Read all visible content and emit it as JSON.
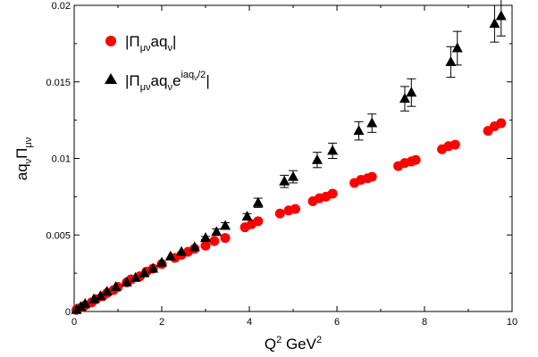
{
  "chart_data": {
    "type": "scatter",
    "title": "",
    "xlim": [
      0,
      10
    ],
    "ylim": [
      0,
      0.02
    ],
    "x_ticks": [
      0,
      2,
      4,
      6,
      8,
      10
    ],
    "y_ticks": [
      0,
      0.005,
      0.01,
      0.015,
      0.02
    ],
    "x_tick_labels": [
      "0",
      "2",
      "4",
      "6",
      "8",
      "10"
    ],
    "y_tick_labels": [
      "0",
      "0.005",
      "0.01",
      "0.015",
      "0.02"
    ],
    "xlabel": {
      "base": "Q",
      "sup1": "2",
      "mid": " GeV",
      "sup2": "2"
    },
    "ylabel": {
      "a": "aq",
      "a_sub": "ν",
      "b": "Π",
      "b_sub": "μν"
    },
    "legend_position": "top-left",
    "legend": [
      {
        "prefix": "|Π",
        "sub1": "μν",
        "mid": "aq",
        "sub2": "ν",
        "sup": "",
        "suffix": "|"
      },
      {
        "prefix": "|Π",
        "sub1": "μν",
        "mid": "aq",
        "sub2": "ν",
        "mid2": "e",
        "sup": "iaq",
        "sup_sub": "ν",
        "sup_tail": "/2",
        "suffix": "|"
      }
    ],
    "series": [
      {
        "marker": "circle",
        "color": "#ff0000",
        "x": [
          0.05,
          0.1,
          0.2,
          0.25,
          0.4,
          0.5,
          0.65,
          0.75,
          0.9,
          1.0,
          1.2,
          1.3,
          1.5,
          1.65,
          1.8,
          2.0,
          2.3,
          2.45,
          2.6,
          2.75,
          3.0,
          3.2,
          3.45,
          3.9,
          4.05,
          4.2,
          4.7,
          4.9,
          5.05,
          5.45,
          5.6,
          5.75,
          5.9,
          6.4,
          6.55,
          6.7,
          6.8,
          7.4,
          7.55,
          7.7,
          7.8,
          8.4,
          8.55,
          8.7,
          9.45,
          9.6,
          9.75
        ],
        "y": [
          0.0001,
          0.0002,
          0.0003,
          0.0004,
          0.0006,
          0.0008,
          0.001,
          0.0012,
          0.0014,
          0.0016,
          0.0019,
          0.0021,
          0.0023,
          0.0026,
          0.0028,
          0.0031,
          0.0035,
          0.0037,
          0.0039,
          0.0041,
          0.0043,
          0.0046,
          0.0048,
          0.0055,
          0.0057,
          0.0059,
          0.0064,
          0.0066,
          0.0067,
          0.0072,
          0.0074,
          0.0075,
          0.0077,
          0.0084,
          0.0086,
          0.0087,
          0.0088,
          0.0095,
          0.0097,
          0.0098,
          0.0099,
          0.0106,
          0.0108,
          0.0109,
          0.0118,
          0.0121,
          0.0123
        ]
      },
      {
        "marker": "triangle",
        "color": "#000000",
        "x": [
          0.05,
          0.15,
          0.25,
          0.45,
          0.6,
          0.75,
          0.95,
          1.2,
          1.4,
          1.6,
          1.8,
          2.0,
          2.2,
          2.45,
          2.75,
          3.0,
          3.25,
          3.45,
          3.95,
          4.2,
          4.8,
          5.0,
          5.55,
          5.9,
          6.5,
          6.8,
          7.55,
          7.7,
          8.6,
          8.75,
          9.6,
          9.75
        ],
        "y": [
          0.0001,
          0.0003,
          0.0005,
          0.0008,
          0.001,
          0.0013,
          0.0016,
          0.0019,
          0.0022,
          0.0025,
          0.0028,
          0.0032,
          0.0036,
          0.0039,
          0.0042,
          0.0048,
          0.0052,
          0.0056,
          0.0062,
          0.0071,
          0.0085,
          0.0088,
          0.0099,
          0.0105,
          0.0118,
          0.0123,
          0.0139,
          0.0143,
          0.0163,
          0.0172,
          0.0188,
          0.0193
        ],
        "err": [
          0,
          0,
          0,
          0,
          0,
          0,
          0,
          0,
          0,
          0,
          0,
          0,
          0,
          0,
          0,
          0.0001,
          0.0002,
          0.0002,
          0.0002,
          0.0003,
          0.0004,
          0.0004,
          0.0005,
          0.0005,
          0.0006,
          0.0006,
          0.0008,
          0.0009,
          0.001,
          0.0011,
          0.0012,
          0.0013
        ]
      }
    ]
  }
}
